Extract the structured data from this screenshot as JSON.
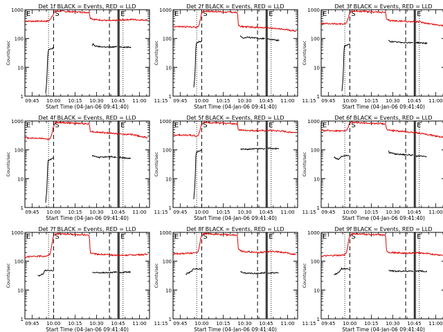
{
  "figure": {
    "ylabel": "Counts/sec",
    "xlabel": "Start Time (04-Jan-06 09:41:40)",
    "x_tick_labels": [
      "09:45",
      "10:00",
      "10:15",
      "10:30",
      "10:45",
      "11:00",
      "11:15"
    ],
    "y_tick_labels": [
      "1",
      "10",
      "100",
      "1000"
    ],
    "markers": [
      "E",
      "S",
      "E"
    ]
  },
  "colors": {
    "events": "#000000",
    "lld": "#e00000",
    "axes": "#000000",
    "background": "#ffffff"
  },
  "chart_data": [
    {
      "type": "line",
      "title": "Det 1f BLACK = Events, RED = LLD",
      "xlim_min": [
        40,
        127
      ],
      "ylim": [
        1,
        1000
      ],
      "yscale": "log",
      "dashed_vlines_min": [
        60,
        99
      ],
      "dotted_vlines_min": [
        56.5,
        108.5
      ],
      "solid_vlines_min": [
        105,
        105.8
      ],
      "series": [
        {
          "key": "lld",
          "values": {
            "x": [
              40,
              56,
              57.5,
              58.5,
              60,
              61.2,
              85,
              85.6,
              88,
              100,
              108,
              115,
              120,
              126
            ],
            "y": [
              400,
              400,
              440,
              560,
              710,
              900,
              800,
              520,
              460,
              410,
              440,
              460,
              440,
              440
            ]
          }
        },
        {
          "key": "events",
          "values": {
            "x": [
              54.5,
              55.3,
              56,
              56.5,
              57,
              57.5,
              58.5,
              59.4,
              59.6,
              87,
              87.5,
              89,
              92,
              100,
              104,
              104.3,
              106,
              110,
              114
            ],
            "y": [
              1.2,
              3.5,
              30,
              40,
              42,
              42,
              45,
              45,
              50,
              55,
              65,
              55,
              52,
              50,
              52,
              52,
              52,
              50,
              50
            ]
          }
        }
      ]
    },
    {
      "type": "line",
      "title": "Det 2f BLACK = Events, RED = LLD",
      "xlim_min": [
        40,
        127
      ],
      "ylim": [
        1,
        1000
      ],
      "yscale": "log",
      "dashed_vlines_min": [
        60,
        99
      ],
      "dotted_vlines_min": [
        56.5,
        108.5
      ],
      "solid_vlines_min": [
        105,
        105.8
      ],
      "series": [
        {
          "key": "lld",
          "values": {
            "x": [
              40,
              55,
              56.5,
              58,
              59,
              60,
              61.2,
              85,
              85.6,
              88,
              100,
              108,
              115,
              120,
              126
            ],
            "y": [
              260,
              250,
              240,
              280,
              450,
              760,
              900,
              800,
              280,
              260,
              240,
              230,
              210,
              200,
              180
            ]
          }
        },
        {
          "key": "events",
          "values": {
            "x": [
              54.5,
              55.3,
              56,
              56.5,
              57.5,
              58.5,
              59.4,
              59.6,
              87,
              87.5,
              89,
              92,
              100,
              104,
              104.3,
              106,
              110,
              114
            ],
            "y": [
              2,
              5,
              60,
              70,
              75,
              78,
              80,
              85,
              130,
              110,
              105,
              110,
              100,
              100,
              95,
              95,
              90,
              85
            ]
          }
        }
      ]
    },
    {
      "type": "line",
      "title": "Det 3f BLACK = Events, RED = LLD",
      "xlim_min": [
        40,
        127
      ],
      "ylim": [
        1,
        1000
      ],
      "yscale": "log",
      "dashed_vlines_min": [
        60,
        99
      ],
      "dotted_vlines_min": [
        56.5,
        108.5
      ],
      "solid_vlines_min": [
        105,
        105.8
      ],
      "series": [
        {
          "key": "lld",
          "values": {
            "x": [
              40,
              55,
              56.5,
              58,
              59,
              60,
              61.2,
              85,
              85.6,
              88,
              100,
              108,
              115,
              120,
              126
            ],
            "y": [
              330,
              320,
              320,
              360,
              550,
              800,
              900,
              800,
              450,
              420,
              390,
              380,
              330,
              300,
              280
            ]
          }
        },
        {
          "key": "events",
          "values": {
            "x": [
              54.5,
              55.3,
              56,
              56.5,
              57.5,
              58.5,
              59.4,
              59.6,
              87,
              87.5,
              89,
              92,
              100,
              104,
              104.3,
              106,
              110,
              114
            ],
            "y": [
              1.5,
              4,
              50,
              55,
              58,
              60,
              60,
              65,
              90,
              80,
              78,
              75,
              72,
              72,
              70,
              72,
              70,
              68
            ]
          }
        }
      ]
    },
    {
      "type": "line",
      "title": "Det 4f BLACK = Events, RED = LLD",
      "xlim_min": [
        40,
        127
      ],
      "ylim": [
        1,
        1000
      ],
      "yscale": "log",
      "dashed_vlines_min": [
        60,
        99
      ],
      "dotted_vlines_min": [
        56.5,
        108.5
      ],
      "solid_vlines_min": [
        105,
        105.8
      ],
      "series": [
        {
          "key": "lld",
          "values": {
            "x": [
              40,
              54,
              56,
              57.5,
              58.5,
              59.5,
              61.2,
              85,
              85.6,
              88,
              100,
              108,
              115,
              120,
              126
            ],
            "y": [
              260,
              250,
              230,
              240,
              300,
              550,
              900,
              800,
              450,
              420,
              380,
              350,
              340,
              300,
              260
            ]
          }
        },
        {
          "key": "events",
          "values": {
            "x": [
              54.5,
              55.3,
              56,
              56.5,
              57.5,
              58.5,
              59.4,
              59.6,
              87,
              87.5,
              89,
              92,
              100,
              104,
              104.3,
              106,
              110,
              114
            ],
            "y": [
              1.5,
              4,
              40,
              44,
              46,
              48,
              50,
              55,
              60,
              62,
              58,
              55,
              58,
              55,
              55,
              55,
              52,
              50
            ]
          }
        }
      ]
    },
    {
      "type": "line",
      "title": "Det 5f BLACK = Events, RED = LLD",
      "xlim_min": [
        40,
        127
      ],
      "ylim": [
        1,
        1000
      ],
      "yscale": "log",
      "dashed_vlines_min": [
        60,
        99
      ],
      "dotted_vlines_min": [
        56.5,
        108.5
      ],
      "solid_vlines_min": [
        105,
        105.8
      ],
      "series": [
        {
          "key": "lld",
          "values": {
            "x": [
              40,
              54,
              56,
              57.5,
              58.5,
              59.5,
              61.2,
              85,
              85.6,
              88,
              100,
              108,
              115,
              120,
              126
            ],
            "y": [
              330,
              320,
              300,
              320,
              420,
              700,
              900,
              800,
              500,
              480,
              460,
              470,
              450,
              420,
              400
            ]
          }
        },
        {
          "key": "events",
          "values": {
            "x": [
              54.5,
              55.3,
              56,
              56.5,
              57.5,
              58.5,
              59.4,
              59.6,
              87,
              87.5,
              89,
              92,
              100,
              104,
              104.3,
              106,
              110,
              114
            ],
            "y": [
              2,
              6,
              80,
              85,
              88,
              92,
              95,
              100,
              105,
              110,
              105,
              105,
              110,
              110,
              110,
              115,
              110,
              110
            ]
          }
        }
      ]
    },
    {
      "type": "line",
      "title": "Det 6f BLACK = Events, RED = LLD",
      "xlim_min": [
        40,
        127
      ],
      "ylim": [
        1,
        1000
      ],
      "yscale": "log",
      "dashed_vlines_min": [
        60,
        99
      ],
      "dotted_vlines_min": [
        56.5,
        108.5
      ],
      "solid_vlines_min": [
        105,
        105.8
      ],
      "series": [
        {
          "key": "lld",
          "values": {
            "x": [
              40,
              54,
              56,
              57.5,
              58.5,
              59.5,
              61.2,
              85,
              85.6,
              88,
              100,
              108,
              115,
              120,
              126
            ],
            "y": [
              470,
              460,
              450,
              470,
              560,
              800,
              900,
              800,
              520,
              480,
              420,
              380,
              340,
              300,
              280
            ]
          }
        },
        {
          "key": "events",
          "values": {
            "x": [
              49,
              50,
              51,
              52,
              53,
              54,
              87,
              87.5,
              89,
              92,
              100,
              104,
              104.3,
              106,
              110,
              114
            ],
            "y": [
              55,
              52,
              50,
              48,
              50,
              60,
              95,
              80,
              78,
              72,
              68,
              65,
              65,
              60,
              60,
              58
            ]
          }
        }
      ]
    },
    {
      "type": "line",
      "title": "Det 7f BLACK = Events, RED = LLD",
      "xlim_min": [
        40,
        127
      ],
      "ylim": [
        1,
        1000
      ],
      "yscale": "log",
      "dashed_vlines_min": [
        60,
        99
      ],
      "dotted_vlines_min": [
        56.5,
        108.5
      ],
      "solid_vlines_min": [
        105,
        105.8
      ],
      "series": [
        {
          "key": "lld",
          "values": {
            "x": [
              40,
              50,
              54,
              56,
              57.5,
              58.5,
              59.5,
              61.2,
              85,
              85.6,
              88,
              100,
              108,
              115,
              120,
              126
            ],
            "y": [
              140,
              150,
              150,
              155,
              180,
              300,
              650,
              900,
              800,
              200,
              180,
              165,
              160,
              165,
              170,
              170
            ]
          }
        },
        {
          "key": "events",
          "values": {
            "x": [
              49,
              50,
              51,
              52,
              53,
              54,
              87,
              87.5,
              89,
              92,
              100,
              104,
              104.3,
              106,
              110,
              114
            ],
            "y": [
              30,
              32,
              33,
              35,
              38,
              48,
              40,
              42,
              40,
              40,
              40,
              42,
              42,
              40,
              42,
              42
            ]
          }
        }
      ]
    },
    {
      "type": "line",
      "title": "Det 8f BLACK = Events, RED = LLD",
      "xlim_min": [
        40,
        127
      ],
      "ylim": [
        1,
        1000
      ],
      "yscale": "log",
      "dashed_vlines_min": [
        60,
        99
      ],
      "dotted_vlines_min": [
        56.5,
        108.5
      ],
      "solid_vlines_min": [
        105,
        105.8
      ],
      "series": [
        {
          "key": "lld",
          "values": {
            "x": [
              40,
              50,
              54,
              56,
              57.5,
              58.5,
              59.5,
              61.2,
              85,
              85.6,
              88,
              100,
              108,
              115,
              120,
              126
            ],
            "y": [
              180,
              190,
              190,
              190,
              220,
              350,
              700,
              900,
              800,
              260,
              220,
              200,
              220,
              210,
              190,
              170
            ]
          }
        },
        {
          "key": "events",
          "values": {
            "x": [
              49,
              50,
              51,
              52,
              53,
              54,
              87,
              87.5,
              89,
              92,
              100,
              104,
              104.3,
              106,
              110,
              114
            ],
            "y": [
              35,
              38,
              40,
              42,
              45,
              55,
              45,
              42,
              40,
              38,
              38,
              40,
              40,
              38,
              40,
              40
            ]
          }
        }
      ]
    },
    {
      "type": "line",
      "title": "Det 9f BLACK = Events, RED = LLD",
      "xlim_min": [
        40,
        127
      ],
      "ylim": [
        1,
        1000
      ],
      "yscale": "log",
      "dashed_vlines_min": [
        60,
        99
      ],
      "dotted_vlines_min": [
        56.5,
        108.5
      ],
      "solid_vlines_min": [
        105,
        105.8
      ],
      "series": [
        {
          "key": "lld",
          "values": {
            "x": [
              40,
              50,
              54,
              56,
              57.5,
              58.5,
              59.5,
              61.2,
              85,
              85.6,
              88,
              100,
              108,
              115,
              120,
              126
            ],
            "y": [
              150,
              160,
              160,
              165,
              190,
              320,
              650,
              900,
              800,
              220,
              200,
              190,
              195,
              180,
              170,
              160
            ]
          }
        },
        {
          "key": "events",
          "values": {
            "x": [
              49,
              50,
              51,
              52,
              53,
              54,
              87,
              87.5,
              89,
              92,
              100,
              104,
              104.3,
              106,
              110,
              114
            ],
            "y": [
              35,
              36,
              38,
              40,
              45,
              55,
              50,
              48,
              46,
              45,
              45,
              45,
              45,
              45,
              45,
              44
            ]
          }
        }
      ]
    }
  ]
}
